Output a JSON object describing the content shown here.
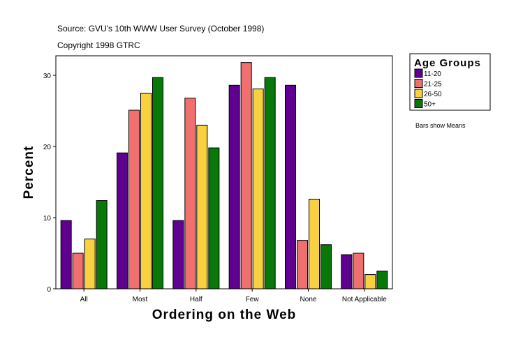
{
  "chart_data": {
    "type": "bar",
    "title": "Source: GVU's 10th WWW User Survey (October 1998)",
    "subtitle": "Copyright 1998 GTRC",
    "xlabel": "Ordering on the Web",
    "ylabel": "Percent",
    "ylim": [
      0,
      32.7
    ],
    "yticks": [
      0,
      10,
      20,
      30
    ],
    "categories": [
      "All",
      "Most",
      "Half",
      "Few",
      "None",
      "Not Applicable"
    ],
    "legend_title": "Age Groups",
    "legend_position": "right",
    "note": "Bars show Means",
    "series": [
      {
        "name": "11-20",
        "color": "#600090",
        "values": [
          9.6,
          19.1,
          9.6,
          28.6,
          28.6,
          4.8
        ]
      },
      {
        "name": "21-25",
        "color": "#f07070",
        "values": [
          5.0,
          25.1,
          26.8,
          31.8,
          6.8,
          5.0
        ]
      },
      {
        "name": "26-50",
        "color": "#f8d040",
        "values": [
          7.0,
          27.5,
          23.0,
          28.1,
          12.6,
          2.0
        ]
      },
      {
        "name": "50+",
        "color": "#087808",
        "values": [
          12.4,
          29.7,
          19.8,
          29.7,
          6.2,
          2.5
        ]
      }
    ]
  }
}
